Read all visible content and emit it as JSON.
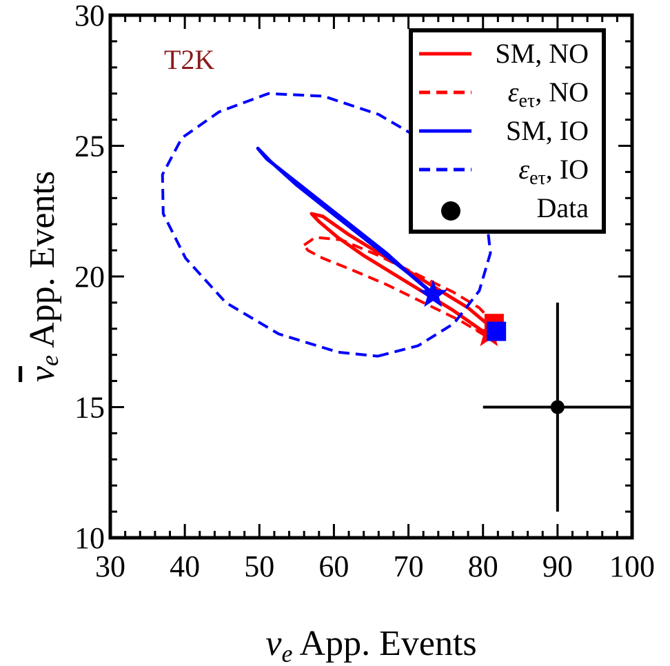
{
  "chart_data": {
    "type": "scatter",
    "title": "",
    "annotation": {
      "text": "T2K",
      "color": "#8b1a1a"
    },
    "xlabel": {
      "symbol": "ν",
      "sub": "e",
      "text": "App. Events"
    },
    "ylabel": {
      "symbol": "ν",
      "bar": true,
      "sub": "e",
      "text": "App. Events"
    },
    "xlim": [
      30,
      100
    ],
    "ylim": [
      10,
      30
    ],
    "xticks": [
      30,
      40,
      50,
      60,
      70,
      80,
      90,
      100
    ],
    "yticks": [
      10,
      15,
      20,
      25,
      30
    ],
    "xtick_labels": [
      "30",
      "40",
      "50",
      "60",
      "70",
      "80",
      "90",
      "100"
    ],
    "ytick_labels": [
      "10",
      "15",
      "20",
      "25",
      "30"
    ],
    "legend_position": "top-right",
    "legend": [
      {
        "label": "SM, NO",
        "symbol": "",
        "sub": "",
        "color": "#ff0000",
        "style": "solid"
      },
      {
        "label": ", NO",
        "symbol": "ε",
        "sub": "eτ",
        "color": "#ff0000",
        "style": "dashed"
      },
      {
        "label": "SM, IO",
        "symbol": "",
        "sub": "",
        "color": "#0000ff",
        "style": "solid"
      },
      {
        "label": ", IO",
        "symbol": "ε",
        "sub": "eτ",
        "color": "#0000ff",
        "style": "dashed"
      },
      {
        "label": "Data",
        "symbol": "",
        "sub": "",
        "color": "#000000",
        "style": "marker"
      }
    ],
    "series": [
      {
        "name": "SM, NO",
        "color": "#ff0000",
        "style": "solid",
        "closed": true,
        "x": [
          57,
          58.5,
          62,
          66,
          70,
          74,
          78,
          80.5,
          81.5,
          80,
          76,
          72,
          68,
          64,
          60.5,
          58
        ],
        "y": [
          22.4,
          22.3,
          21.6,
          20.9,
          20.2,
          19.5,
          18.8,
          18.2,
          17.8,
          17.9,
          18.7,
          19.4,
          20.1,
          20.8,
          21.5,
          22.1
        ]
      },
      {
        "name": "εeτ, NO",
        "color": "#ff0000",
        "style": "dashed",
        "closed": true,
        "x": [
          56,
          57.5,
          61,
          66,
          71,
          76,
          79.5,
          81.5,
          82,
          80.5,
          77,
          72,
          67,
          62,
          58.5,
          56.5
        ],
        "y": [
          21.2,
          21.5,
          21.4,
          20.8,
          20.1,
          19.4,
          18.8,
          18.2,
          17.7,
          17.7,
          18.3,
          19.0,
          19.7,
          20.3,
          20.7,
          21.0
        ]
      },
      {
        "name": "SM, IO",
        "color": "#0000ff",
        "style": "solid",
        "closed": true,
        "x": [
          49.8,
          51,
          55,
          59,
          63,
          67,
          70.5,
          73,
          73.5,
          71,
          67,
          63,
          59,
          55,
          51.5
        ],
        "y": [
          24.9,
          24.5,
          23.6,
          22.7,
          21.8,
          20.9,
          20.0,
          19.4,
          19.3,
          19.9,
          20.8,
          21.7,
          22.6,
          23.5,
          24.4
        ]
      },
      {
        "name": "εeτ, IO",
        "color": "#0000ff",
        "style": "dashed",
        "closed": true,
        "x": [
          65.9,
          71.3,
          76.1,
          79.5,
          81,
          80.4,
          77.5,
          72.6,
          66,
          58.6,
          51.2,
          44.6,
          39.6,
          37,
          37.1,
          40.1,
          45.5,
          52.6,
          60.6
        ],
        "y": [
          16.95,
          17.35,
          18.2,
          19.45,
          20.9,
          22.4,
          23.8,
          25.1,
          26.2,
          26.9,
          27.0,
          26.3,
          25.3,
          23.9,
          22.4,
          20.7,
          19.0,
          17.8,
          17.1
        ]
      }
    ],
    "markers": [
      {
        "shape": "star",
        "x": 73.3,
        "y": 19.3,
        "color": "#0000ff"
      },
      {
        "shape": "star",
        "x": 80.8,
        "y": 17.8,
        "color": "#ff0000"
      },
      {
        "shape": "square",
        "x": 81.5,
        "y": 18.2,
        "color": "#ff0000"
      },
      {
        "shape": "square",
        "x": 81.8,
        "y": 17.9,
        "color": "#0000ff"
      }
    ],
    "data_point": {
      "x": 90,
      "y": 15,
      "xerr": [
        10,
        10
      ],
      "yerr": [
        4,
        4
      ],
      "color": "#000000"
    }
  }
}
